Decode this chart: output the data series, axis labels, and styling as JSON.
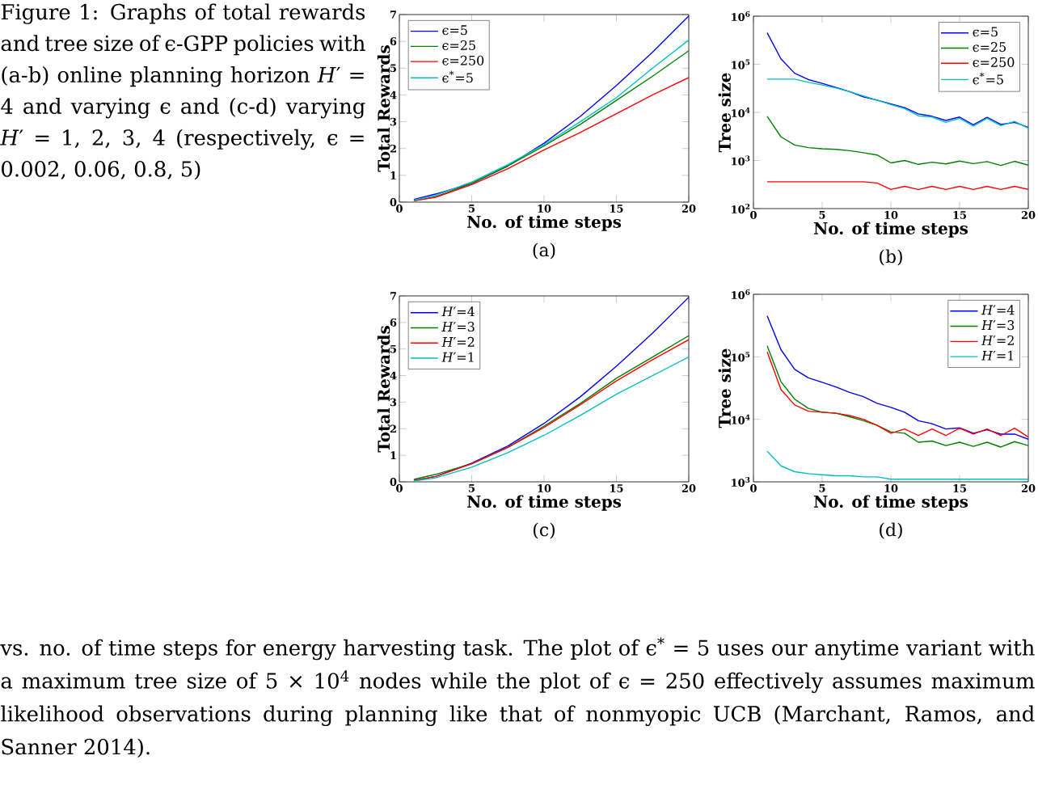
{
  "chart_data": [
    {
      "type": "line",
      "xlabel": "No. of time steps",
      "ylabel": "Total Rewards",
      "xlim": [
        0,
        20
      ],
      "ylim": [
        0,
        7
      ],
      "xticks": [
        0,
        5,
        10,
        15,
        20
      ],
      "yticks": [
        0,
        1,
        2,
        3,
        4,
        5,
        6,
        7
      ],
      "legend": "top left",
      "annotations": [
        "(a)",
        "Figure 1: Graphs of total rewards and tree size of ϵ-GPP policies with (a-b) online planning horizon *H*′ = 4 and varying ϵ and (c-d) varying *H*′ = 1, 2, 3, 4 (respectively, ϵ = 0.002, 0.06, 0.8, 5)",
        "vs. no. of time steps for energy harvesting task. The plot of ϵ$^{*}$ = 5 uses our anytime variant with a maximum tree size of 5 × 10$^{4}$ nodes while the plot of ϵ = 250 effectively assumes maximum likelihood observations during planning like that of nonmyopic UCB (Marchant, Ramos, and Sanner 2014)."
      ],
      "x": [
        1,
        2.5,
        5,
        7.5,
        10,
        12.5,
        15,
        17.5,
        20
      ],
      "series": [
        {
          "name": "ϵ=5",
          "color": "#0000ff",
          "values": [
            0.1,
            0.3,
            0.7,
            1.35,
            2.2,
            3.2,
            4.35,
            5.6,
            6.95
          ]
        },
        {
          "name": "ϵ=25",
          "color": "#008000",
          "values": [
            0.05,
            0.2,
            0.7,
            1.35,
            2.1,
            2.9,
            3.8,
            4.7,
            5.65
          ]
        },
        {
          "name": "ϵ=250",
          "color": "#ff0000",
          "values": [
            0.05,
            0.18,
            0.65,
            1.25,
            1.95,
            2.6,
            3.3,
            4.0,
            4.65
          ]
        },
        {
          "name": "ϵ$^{*}$=5",
          "color": "#00bfbf",
          "values": [
            0.07,
            0.25,
            0.75,
            1.4,
            2.15,
            3.0,
            3.9,
            5.0,
            6.05
          ]
        }
      ]
    },
    {
      "type": "line",
      "xlabel": "No. of time steps",
      "ylabel": "Tree size",
      "log": "y",
      "xlim": [
        0,
        20
      ],
      "ylim": [
        100,
        1000000
      ],
      "xticks": [
        0,
        5,
        10,
        15,
        20
      ],
      "yticks": [
        {
          "value": 100,
          "label": "10$^{2}$"
        },
        {
          "value": 1000,
          "label": "10$^{3}$"
        },
        {
          "value": 10000,
          "label": "10$^{4}$"
        },
        {
          "value": 100000,
          "label": "10$^{5}$"
        },
        {
          "value": 1000000,
          "label": "10$^{6}$"
        }
      ],
      "legend": "top right",
      "annotations": [
        "(b)"
      ],
      "x": [
        1,
        2,
        3,
        4,
        5,
        6,
        7,
        8,
        9,
        10,
        11,
        12,
        13,
        14,
        15,
        16,
        17,
        18,
        19,
        20
      ],
      "series": [
        {
          "name": "ϵ=5",
          "color": "#0000ff",
          "values": [
            450000,
            130000,
            65000,
            48000,
            40000,
            33000,
            27000,
            21000,
            18000,
            15000,
            12500,
            9300,
            8300,
            6800,
            8000,
            5500,
            7900,
            5600,
            6200,
            4900
          ]
        },
        {
          "name": "ϵ=25",
          "color": "#008000",
          "values": [
            8300,
            3100,
            2100,
            1850,
            1750,
            1700,
            1600,
            1450,
            1300,
            890,
            1000,
            830,
            920,
            850,
            970,
            860,
            950,
            790,
            960,
            800
          ]
        },
        {
          "name": "ϵ=250",
          "color": "#ff0000",
          "values": [
            360,
            360,
            360,
            360,
            360,
            360,
            360,
            360,
            340,
            250,
            290,
            250,
            290,
            250,
            290,
            250,
            290,
            250,
            290,
            250
          ]
        },
        {
          "name": "ϵ$^{*}$=5",
          "color": "#00bfbf",
          "values": [
            49000,
            49000,
            49000,
            42000,
            37000,
            32000,
            27000,
            22000,
            18000,
            14500,
            12000,
            8500,
            8000,
            6200,
            7500,
            5200,
            7500,
            5300,
            6500,
            4700
          ]
        }
      ]
    },
    {
      "type": "line",
      "xlabel": "No. of time steps",
      "ylabel": "Total Rewards",
      "xlim": [
        0,
        20
      ],
      "ylim": [
        0,
        7
      ],
      "xticks": [
        0,
        5,
        10,
        15,
        20
      ],
      "yticks": [
        0,
        1,
        2,
        3,
        4,
        5,
        6,
        7
      ],
      "legend": "top left",
      "annotations": [
        "(c)"
      ],
      "x": [
        1,
        2.5,
        5,
        7.5,
        10,
        12.5,
        15,
        17.5,
        20
      ],
      "series": [
        {
          "name": "*H*′=4",
          "color": "#0000ff",
          "values": [
            0.05,
            0.2,
            0.7,
            1.35,
            2.2,
            3.2,
            4.35,
            5.6,
            6.95
          ]
        },
        {
          "name": "*H*′=3",
          "color": "#008000",
          "values": [
            0.09,
            0.28,
            0.68,
            1.3,
            2.1,
            2.95,
            3.9,
            4.7,
            5.5
          ]
        },
        {
          "name": "*H*′=2",
          "color": "#ff0000",
          "values": [
            0.05,
            0.2,
            0.68,
            1.3,
            2.05,
            2.9,
            3.8,
            4.6,
            5.35
          ]
        },
        {
          "name": "*H*′=1",
          "color": "#00bfbf",
          "values": [
            0.03,
            0.15,
            0.55,
            1.1,
            1.75,
            2.5,
            3.3,
            4.0,
            4.7
          ]
        }
      ]
    },
    {
      "type": "line",
      "xlabel": "No. of time steps",
      "ylabel": "Tree size",
      "log": "y",
      "xlim": [
        0,
        20
      ],
      "ylim": [
        1000,
        1000000
      ],
      "xticks": [
        0,
        5,
        10,
        15,
        20
      ],
      "yticks": [
        {
          "value": 1000,
          "label": "10$^{3}$"
        },
        {
          "value": 10000,
          "label": "10$^{4}$"
        },
        {
          "value": 100000,
          "label": "10$^{5}$"
        },
        {
          "value": 1000000,
          "label": "10$^{6}$"
        }
      ],
      "legend": "top right",
      "annotations": [
        "(d)"
      ],
      "x": [
        1,
        2,
        3,
        4,
        5,
        6,
        7,
        8,
        9,
        10,
        11,
        12,
        13,
        14,
        15,
        16,
        17,
        18,
        19,
        20
      ],
      "series": [
        {
          "name": "*H*′=4",
          "color": "#0000ff",
          "values": [
            450000,
            130000,
            63000,
            46000,
            39000,
            33000,
            27000,
            23000,
            18000,
            15500,
            13000,
            9500,
            8500,
            7000,
            7300,
            6000,
            6800,
            5800,
            5800,
            4800
          ]
        },
        {
          "name": "*H*′=3",
          "color": "#008000",
          "values": [
            150000,
            40000,
            21000,
            15000,
            13000,
            12500,
            11000,
            9500,
            8000,
            6300,
            6000,
            4300,
            4500,
            3800,
            4300,
            3700,
            4300,
            3600,
            4400,
            3800
          ]
        },
        {
          "name": "*H*′=2",
          "color": "#ff0000",
          "values": [
            120000,
            30000,
            17000,
            13500,
            13000,
            12500,
            11500,
            10000,
            8000,
            6000,
            7000,
            5500,
            7000,
            5500,
            7200,
            5800,
            7000,
            5500,
            7200,
            5200
          ]
        },
        {
          "name": "*H*′=1",
          "color": "#00bfbf",
          "values": [
            3100,
            1800,
            1450,
            1350,
            1300,
            1250,
            1250,
            1200,
            1200,
            1100,
            1100,
            1100,
            1100,
            1100,
            1100,
            1100,
            1100,
            1100,
            1100,
            1100
          ]
        }
      ]
    }
  ]
}
